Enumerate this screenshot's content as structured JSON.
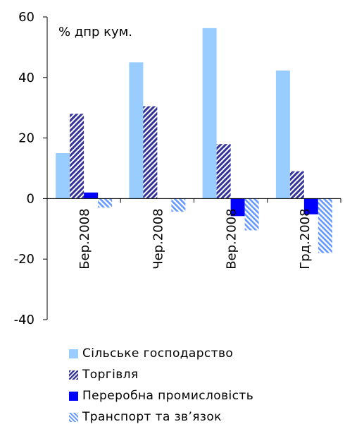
{
  "colors": {
    "agriculture": "#99ccff",
    "trade": "#333399",
    "processing": "#0000ff",
    "transport": "#6699ff",
    "axis": "#000000"
  },
  "chart_data": {
    "type": "bar",
    "annotation": "% дпр кум.",
    "categories": [
      "Бер.2008",
      "Чер.2008",
      "Вер.2008",
      "Грд.2008"
    ],
    "ylim": [
      -40,
      60
    ],
    "yticks": [
      -40,
      -20,
      0,
      20,
      40,
      60
    ],
    "grid": false,
    "legend_position": "bottom",
    "series": [
      {
        "name": "Сільське господарство",
        "key": "agriculture",
        "fill": "solid",
        "values": [
          15,
          45,
          56.3,
          42.3
        ]
      },
      {
        "name": "Торгівля",
        "key": "trade",
        "fill": "hatch-back",
        "values": [
          28,
          30.5,
          18,
          9
        ]
      },
      {
        "name": "Переробна промисловість",
        "key": "processing",
        "fill": "solid",
        "values": [
          2,
          0,
          -5.8,
          -5.2
        ]
      },
      {
        "name": "Транспорт та зв’язок",
        "key": "transport",
        "fill": "hatch-fwd",
        "values": [
          -3,
          -4.3,
          -10.5,
          -18
        ]
      }
    ]
  }
}
